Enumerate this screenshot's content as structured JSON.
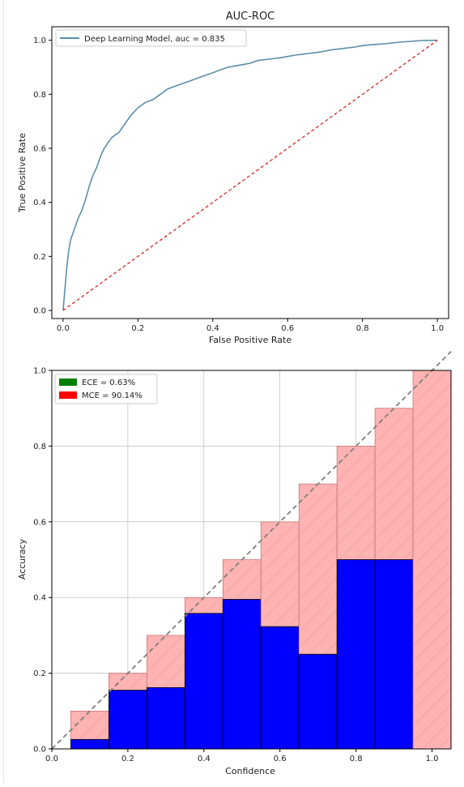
{
  "chart_data": [
    {
      "type": "line",
      "title": "AUC-ROC",
      "xlabel": "False Positive Rate",
      "ylabel": "True Positive Rate",
      "xlim": [
        -0.03,
        1.03
      ],
      "ylim": [
        -0.03,
        1.05
      ],
      "x_ticks": [
        "0.0",
        "0.2",
        "0.4",
        "0.6",
        "0.8",
        "1.0"
      ],
      "y_ticks": [
        "0.0",
        "0.2",
        "0.4",
        "0.6",
        "0.8",
        "1.0"
      ],
      "grid": false,
      "legend_position": "top-left",
      "series": [
        {
          "name": "Deep Learning Model, auc = 0.835",
          "style": "solid",
          "color": "#5b8fa8",
          "x": [
            0.0,
            0.005,
            0.01,
            0.015,
            0.02,
            0.03,
            0.04,
            0.05,
            0.06,
            0.07,
            0.08,
            0.09,
            0.1,
            0.11,
            0.12,
            0.13,
            0.14,
            0.15,
            0.16,
            0.18,
            0.2,
            0.22,
            0.24,
            0.26,
            0.28,
            0.3,
            0.32,
            0.34,
            0.36,
            0.38,
            0.4,
            0.42,
            0.44,
            0.46,
            0.48,
            0.5,
            0.52,
            0.55,
            0.58,
            0.6,
            0.62,
            0.65,
            0.68,
            0.7,
            0.72,
            0.75,
            0.78,
            0.8,
            0.82,
            0.85,
            0.88,
            0.9,
            0.93,
            0.96,
            1.0
          ],
          "y": [
            0.0,
            0.08,
            0.16,
            0.22,
            0.26,
            0.3,
            0.34,
            0.37,
            0.41,
            0.46,
            0.5,
            0.53,
            0.57,
            0.6,
            0.62,
            0.64,
            0.65,
            0.66,
            0.68,
            0.72,
            0.75,
            0.77,
            0.78,
            0.8,
            0.82,
            0.83,
            0.84,
            0.85,
            0.86,
            0.87,
            0.88,
            0.89,
            0.9,
            0.905,
            0.91,
            0.915,
            0.925,
            0.93,
            0.935,
            0.94,
            0.945,
            0.95,
            0.955,
            0.96,
            0.965,
            0.97,
            0.975,
            0.98,
            0.983,
            0.986,
            0.99,
            0.993,
            0.996,
            0.999,
            1.0
          ]
        },
        {
          "style": "dashed",
          "color": "#d62728",
          "x": [
            0.0,
            1.0
          ],
          "y": [
            0.0,
            1.0
          ]
        }
      ]
    },
    {
      "type": "bar",
      "xlabel": "Confidence",
      "ylabel": "Accuracy",
      "xlim": [
        0.0,
        1.05
      ],
      "ylim": [
        0.0,
        1.0
      ],
      "x_ticks": [
        "0.0",
        "0.2",
        "0.4",
        "0.6",
        "0.8",
        "1.0"
      ],
      "y_ticks": [
        "0.0",
        "0.2",
        "0.4",
        "0.6",
        "0.8",
        "1.0"
      ],
      "grid": true,
      "legend_position": "top-left",
      "legend": [
        {
          "label": "ECE = 0.63%",
          "color": "#008000"
        },
        {
          "label": "MCE = 90.14%",
          "color": "#ff0000"
        }
      ],
      "bin_centers": [
        0.1,
        0.2,
        0.3,
        0.4,
        0.5,
        0.6,
        0.7,
        0.8,
        0.9,
        1.0
      ],
      "bin_width": 0.1,
      "accuracy": [
        0.025,
        0.155,
        0.162,
        0.358,
        0.395,
        0.323,
        0.25,
        0.5,
        0.5,
        0.0
      ],
      "gap_top": [
        0.1,
        0.2,
        0.3,
        0.4,
        0.5,
        0.6,
        0.7,
        0.8,
        0.9,
        1.0
      ],
      "accuracy_color": "#0000ff",
      "gap_color": "#ffb3b3",
      "diagonal_color": "#808080"
    }
  ]
}
